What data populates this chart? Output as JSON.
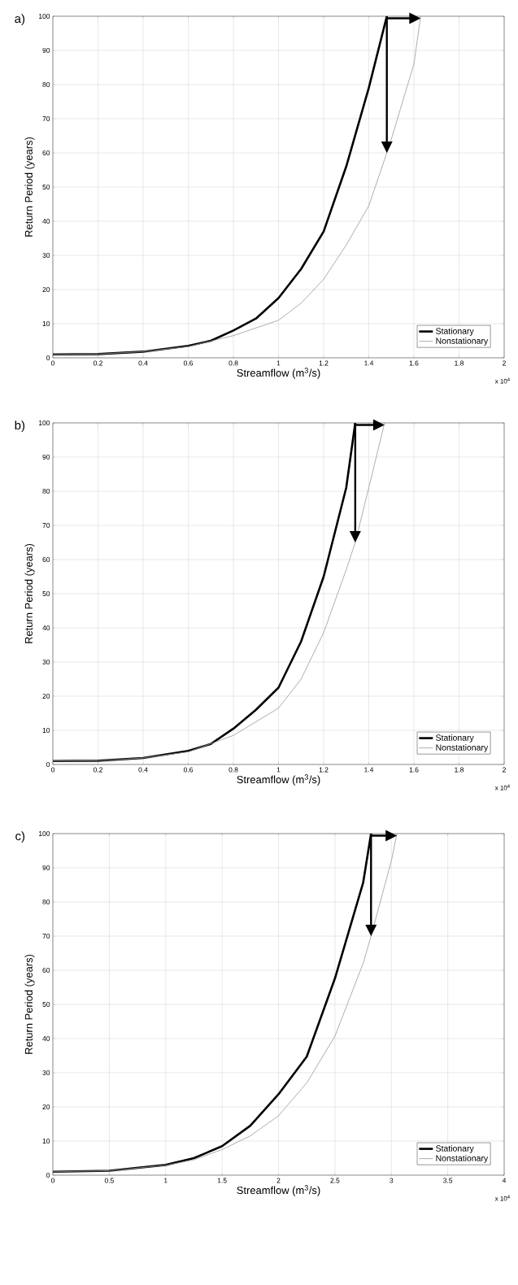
{
  "chart_data": [
    {
      "type": "line",
      "xlabel": "Streamflow (m$^{3}$/s)",
      "ylabel": "Return Period (years)",
      "annotations": [
        "a)",
        "x 10$^{4}$"
      ],
      "xlim": [
        0,
        2
      ],
      "xticks": [
        0,
        0.2,
        0.4,
        0.6,
        0.8,
        1,
        1.2,
        1.4,
        1.6,
        1.8,
        2
      ],
      "ylim": [
        0,
        100
      ],
      "yticks": [
        0,
        10,
        20,
        30,
        40,
        50,
        60,
        70,
        80,
        90,
        100
      ],
      "grid": true,
      "legend": "bottom right",
      "marker": "none",
      "line_style": "solid",
      "series": [
        {
          "name": "Stationary",
          "color": "#000000",
          "x": [
            0,
            0.2,
            0.4,
            0.6,
            0.7,
            0.8,
            0.9,
            1.0,
            1.1,
            1.2,
            1.3,
            1.4,
            1.48
          ],
          "values": [
            1,
            1.1,
            1.8,
            3.5,
            5,
            8,
            11.5,
            17.5,
            26,
            37,
            56,
            79,
            100
          ]
        },
        {
          "name": "Nonstationary",
          "color": "#999999",
          "x": [
            0,
            0.2,
            0.4,
            0.6,
            0.8,
            1.0,
            1.1,
            1.2,
            1.3,
            1.4,
            1.48,
            1.5,
            1.6,
            1.63
          ],
          "values": [
            1,
            1.1,
            1.8,
            3.3,
            6.5,
            11,
            16,
            23,
            33,
            44.5,
            60,
            64,
            86,
            100
          ]
        }
      ]
    },
    {
      "type": "line",
      "xlabel": "Streamflow (m$^{3}$/s)",
      "ylabel": "Return Period (years)",
      "annotations": [
        "b)",
        "x 10$^{4}$"
      ],
      "xlim": [
        0,
        2
      ],
      "xticks": [
        0,
        0.2,
        0.4,
        0.6,
        0.8,
        1,
        1.2,
        1.4,
        1.6,
        1.8,
        2
      ],
      "ylim": [
        0,
        100
      ],
      "yticks": [
        0,
        10,
        20,
        30,
        40,
        50,
        60,
        70,
        80,
        90,
        100
      ],
      "grid": true,
      "legend": "bottom right",
      "marker": "none",
      "line_style": "solid",
      "series": [
        {
          "name": "Stationary",
          "color": "#000000",
          "x": [
            0,
            0.2,
            0.4,
            0.6,
            0.7,
            0.8,
            0.9,
            1.0,
            1.1,
            1.2,
            1.3,
            1.34
          ],
          "values": [
            1,
            1.1,
            1.9,
            4,
            6,
            10.5,
            16,
            22.5,
            36,
            55,
            81,
            100
          ]
        },
        {
          "name": "Nonstationary",
          "color": "#999999",
          "x": [
            0,
            0.2,
            0.4,
            0.6,
            0.8,
            1.0,
            1.1,
            1.2,
            1.3,
            1.34,
            1.4,
            1.47
          ],
          "values": [
            1,
            1.1,
            1.9,
            3.7,
            8.5,
            16.5,
            25,
            38.6,
            57,
            65,
            81,
            100
          ]
        }
      ]
    },
    {
      "type": "line",
      "xlabel": "Streamflow (m$^{3}$/s)",
      "ylabel": "Return Period (years)",
      "annotations": [
        "c)",
        "x 10$^{4}$"
      ],
      "xlim": [
        0,
        4
      ],
      "xticks": [
        0,
        0.5,
        1,
        1.5,
        2,
        2.5,
        3,
        3.5,
        4
      ],
      "ylim": [
        0,
        100
      ],
      "yticks": [
        0,
        10,
        20,
        30,
        40,
        50,
        60,
        70,
        80,
        90,
        100
      ],
      "grid": true,
      "legend": "bottom right",
      "marker": "none",
      "line_style": "solid",
      "series": [
        {
          "name": "Stationary",
          "color": "#000000",
          "x": [
            0,
            0.5,
            1.0,
            1.25,
            1.5,
            1.75,
            2.0,
            2.25,
            2.5,
            2.75,
            2.82
          ],
          "values": [
            1,
            1.3,
            3,
            5,
            8.5,
            14.5,
            23.7,
            34.7,
            57.6,
            85.6,
            100
          ]
        },
        {
          "name": "Nonstationary",
          "color": "#999999",
          "x": [
            0,
            0.5,
            1.0,
            1.25,
            1.5,
            1.75,
            2.0,
            2.25,
            2.5,
            2.75,
            2.82,
            3.0,
            3.05
          ],
          "values": [
            1,
            1.3,
            2.9,
            4.5,
            7.5,
            11.5,
            17.4,
            27,
            40.7,
            62,
            70,
            92,
            100
          ]
        }
      ]
    }
  ]
}
